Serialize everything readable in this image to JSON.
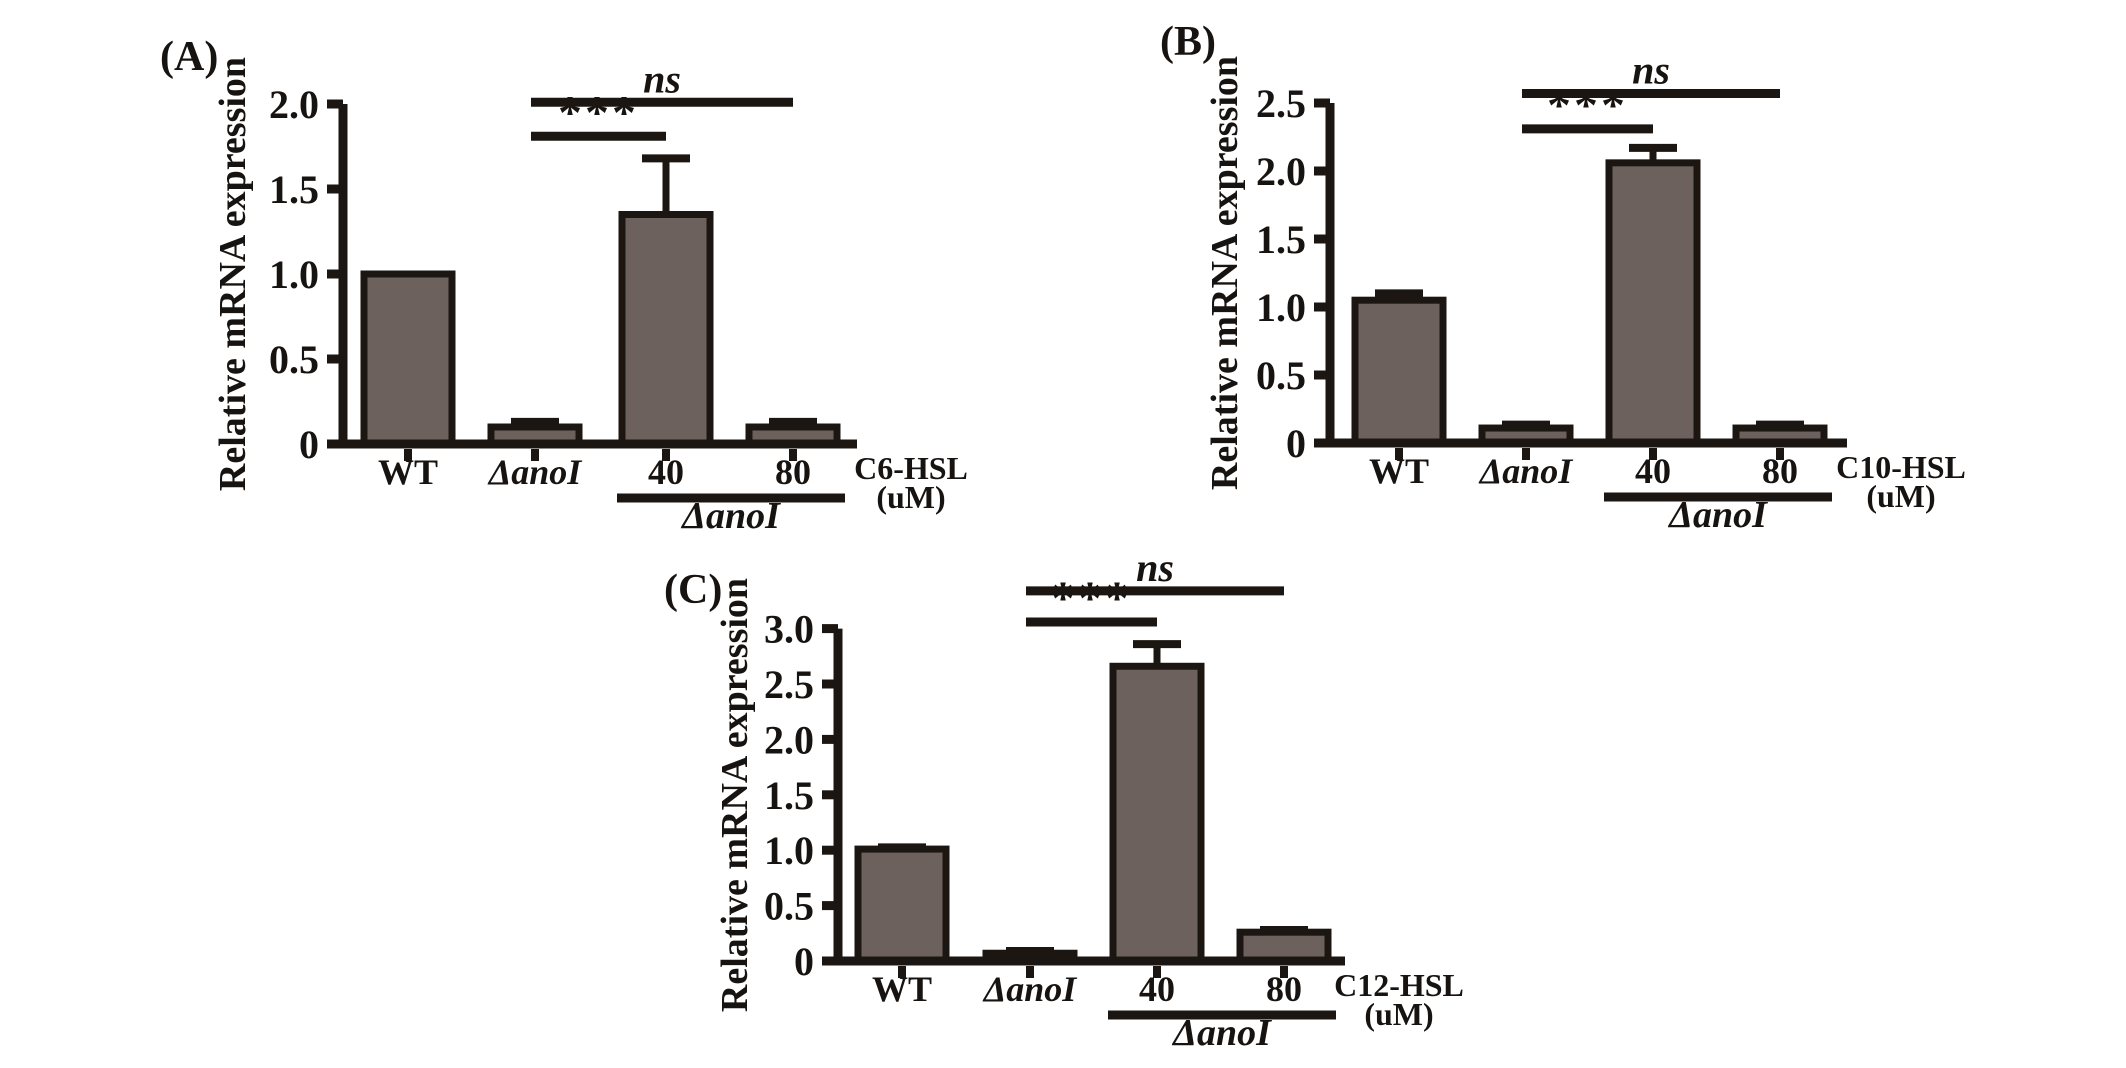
{
  "figure": {
    "background": "#ffffff",
    "bar_fill": "#6d615e",
    "bar_stroke": "#1b1611",
    "text_color": "#171310",
    "ylabel": "Relative mRNA expression"
  },
  "chart_data": [
    {
      "type": "bar",
      "panel_letter": "(A)",
      "ylabel": "Relative mRNA expression",
      "categories": [
        "WT",
        "ΔanoI",
        "40",
        "80"
      ],
      "values": [
        1.0,
        0.1,
        1.35,
        0.1
      ],
      "errors_up": [
        0,
        0.03,
        0.33,
        0.03
      ],
      "ylim": [
        0,
        2.0
      ],
      "yticks": [
        "0",
        "0.5",
        "1.0",
        "1.5",
        "2.0"
      ],
      "unit_label_line1": "C6-HSL",
      "unit_label_line2": "(uM)",
      "group_bracket": {
        "label": "ΔanoI",
        "from": "40",
        "to": "80"
      },
      "significance": [
        {
          "label": "***",
          "from": "ΔanoI",
          "to": "40",
          "level": 1.81
        },
        {
          "label": "ns",
          "from": "ΔanoI",
          "to": "80",
          "level": 2.01
        }
      ],
      "grid": false,
      "legend": "none"
    },
    {
      "type": "bar",
      "panel_letter": "(B)",
      "ylabel": "Relative mRNA expression",
      "categories": [
        "WT",
        "ΔanoI",
        "40",
        "80"
      ],
      "values": [
        1.05,
        0.11,
        2.06,
        0.11
      ],
      "errors_up": [
        0.05,
        0.025,
        0.11,
        0.025
      ],
      "ylim": [
        0,
        2.5
      ],
      "yticks": [
        "0",
        "0.5",
        "1.0",
        "1.5",
        "2.0",
        "2.5"
      ],
      "unit_label_line1": "C10-HSL",
      "unit_label_line2": "(uM)",
      "group_bracket": {
        "label": "ΔanoI",
        "from": "40",
        "to": "80"
      },
      "significance": [
        {
          "label": "***",
          "from": "ΔanoI",
          "to": "40",
          "level": 2.31
        },
        {
          "label": "ns",
          "from": "ΔanoI",
          "to": "80",
          "level": 2.57
        }
      ],
      "grid": false,
      "legend": "none"
    },
    {
      "type": "bar",
      "panel_letter": "(C)",
      "ylabel": "Relative mRNA expression",
      "categories": [
        "WT",
        "ΔanoI",
        "40",
        "80"
      ],
      "values": [
        1.01,
        0.07,
        2.66,
        0.26
      ],
      "errors_up": [
        0.015,
        0.02,
        0.2,
        0.02
      ],
      "ylim": [
        0,
        3.0
      ],
      "yticks": [
        "0",
        "0.5",
        "1.0",
        "1.5",
        "2.0",
        "2.5",
        "3.0"
      ],
      "unit_label_line1": "C12-HSL",
      "unit_label_line2": "(uM)",
      "group_bracket": {
        "label": "ΔanoI",
        "from": "40",
        "to": "80"
      },
      "significance": [
        {
          "label": "***",
          "from": "ΔanoI",
          "to": "40",
          "level": 3.06
        },
        {
          "label": "ns",
          "from": "ΔanoI",
          "to": "80",
          "level": 3.34
        }
      ],
      "grid": false,
      "legend": "none"
    }
  ]
}
